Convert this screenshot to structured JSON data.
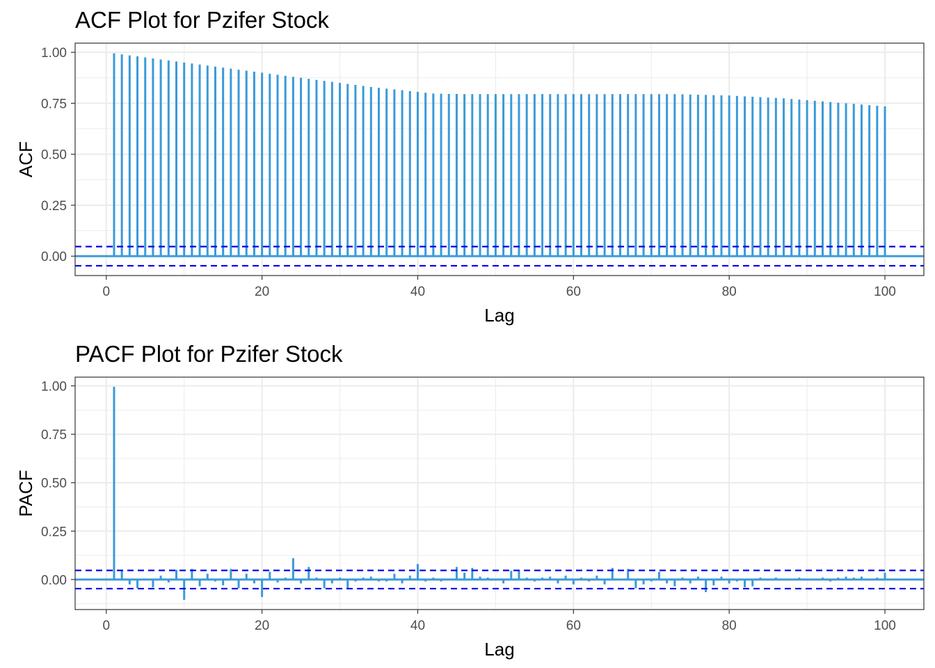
{
  "colors": {
    "bar": "#3a9ad9",
    "confidence": "#0000ee",
    "zero_line": "#3a9ad9"
  },
  "chart_data": [
    {
      "type": "bar",
      "title": "ACF Plot for Pzifer Stock",
      "xlabel": "Lag",
      "ylabel": "ACF",
      "xlim": [
        -4,
        105
      ],
      "ylim": [
        -0.095,
        1.045
      ],
      "x_ticks": [
        0,
        20,
        40,
        60,
        80,
        100
      ],
      "x_tick_labels": [
        "0",
        "20",
        "40",
        "60",
        "80",
        "100"
      ],
      "y_ticks": [
        0,
        0.25,
        0.5,
        0.75,
        1.0
      ],
      "y_tick_labels": [
        "0.00",
        "0.25",
        "0.50",
        "0.75",
        "1.00"
      ],
      "grid": true,
      "confidence_bound": 0.047,
      "lags": [
        1,
        2,
        3,
        4,
        5,
        6,
        7,
        8,
        9,
        10,
        11,
        12,
        13,
        14,
        15,
        16,
        17,
        18,
        19,
        20,
        21,
        22,
        23,
        24,
        25,
        26,
        27,
        28,
        29,
        30,
        31,
        32,
        33,
        34,
        35,
        36,
        37,
        38,
        39,
        40,
        41,
        42,
        43,
        44,
        45,
        46,
        47,
        48,
        49,
        50,
        51,
        52,
        53,
        54,
        55,
        56,
        57,
        58,
        59,
        60,
        61,
        62,
        63,
        64,
        65,
        66,
        67,
        68,
        69,
        70,
        71,
        72,
        73,
        74,
        75,
        76,
        77,
        78,
        79,
        80,
        81,
        82,
        83,
        84,
        85,
        86,
        87,
        88,
        89,
        90,
        91,
        92,
        93,
        94,
        95,
        96,
        97,
        98,
        99,
        100
      ],
      "values": [
        0.995,
        0.99,
        0.985,
        0.98,
        0.975,
        0.97,
        0.965,
        0.96,
        0.955,
        0.95,
        0.945,
        0.94,
        0.935,
        0.93,
        0.925,
        0.92,
        0.915,
        0.91,
        0.905,
        0.9,
        0.895,
        0.89,
        0.885,
        0.88,
        0.875,
        0.87,
        0.865,
        0.86,
        0.855,
        0.85,
        0.845,
        0.84,
        0.835,
        0.83,
        0.826,
        0.822,
        0.818,
        0.814,
        0.81,
        0.806,
        0.802,
        0.798,
        0.797,
        0.796,
        0.796,
        0.795,
        0.795,
        0.795,
        0.795,
        0.795,
        0.795,
        0.795,
        0.795,
        0.795,
        0.795,
        0.795,
        0.795,
        0.795,
        0.795,
        0.795,
        0.795,
        0.795,
        0.795,
        0.795,
        0.795,
        0.795,
        0.795,
        0.795,
        0.795,
        0.795,
        0.795,
        0.795,
        0.795,
        0.794,
        0.793,
        0.792,
        0.791,
        0.79,
        0.789,
        0.788,
        0.786,
        0.784,
        0.782,
        0.78,
        0.778,
        0.776,
        0.774,
        0.771,
        0.768,
        0.765,
        0.762,
        0.759,
        0.756,
        0.753,
        0.75,
        0.747,
        0.744,
        0.741,
        0.738,
        0.735
      ]
    },
    {
      "type": "bar",
      "title": "PACF Plot for Pzifer Stock",
      "xlabel": "Lag",
      "ylabel": "PACF",
      "xlim": [
        -4,
        105
      ],
      "ylim": [
        -0.155,
        1.045
      ],
      "x_ticks": [
        0,
        20,
        40,
        60,
        80,
        100
      ],
      "x_tick_labels": [
        "0",
        "20",
        "40",
        "60",
        "80",
        "100"
      ],
      "y_ticks": [
        0,
        0.25,
        0.5,
        0.75,
        1.0
      ],
      "y_tick_labels": [
        "0.00",
        "0.25",
        "0.50",
        "0.75",
        "1.00"
      ],
      "grid": true,
      "confidence_bound": 0.047,
      "lags": [
        1,
        2,
        3,
        4,
        5,
        6,
        7,
        8,
        9,
        10,
        11,
        12,
        13,
        14,
        15,
        16,
        17,
        18,
        19,
        20,
        21,
        22,
        23,
        24,
        25,
        26,
        27,
        28,
        29,
        30,
        31,
        32,
        33,
        34,
        35,
        36,
        37,
        38,
        39,
        40,
        41,
        42,
        43,
        44,
        45,
        46,
        47,
        48,
        49,
        50,
        51,
        52,
        53,
        54,
        55,
        56,
        57,
        58,
        59,
        60,
        61,
        62,
        63,
        64,
        65,
        66,
        67,
        68,
        69,
        70,
        71,
        72,
        73,
        74,
        75,
        76,
        77,
        78,
        79,
        80,
        81,
        82,
        83,
        84,
        85,
        86,
        87,
        88,
        89,
        90,
        91,
        92,
        93,
        94,
        95,
        96,
        97,
        98,
        99,
        100
      ],
      "values": [
        0.995,
        0.045,
        -0.025,
        -0.045,
        0.005,
        -0.04,
        0.02,
        -0.015,
        0.05,
        -0.105,
        0.055,
        -0.035,
        0.03,
        -0.01,
        -0.03,
        0.055,
        -0.045,
        0.03,
        -0.02,
        -0.09,
        0.04,
        -0.015,
        0.01,
        0.11,
        -0.02,
        0.065,
        0.01,
        -0.045,
        -0.02,
        0.01,
        -0.045,
        -0.01,
        0.01,
        0.015,
        -0.01,
        -0.01,
        0.03,
        -0.02,
        0.02,
        0.08,
        -0.01,
        0.01,
        -0.01,
        0.005,
        0.065,
        0.035,
        0.06,
        0.015,
        0.01,
        0.005,
        -0.02,
        0.045,
        0.045,
        0.01,
        -0.01,
        0.01,
        0.015,
        -0.02,
        0.02,
        -0.025,
        0.01,
        -0.01,
        0.02,
        -0.025,
        0.06,
        0.005,
        0.055,
        -0.045,
        -0.025,
        -0.01,
        0.04,
        -0.02,
        -0.035,
        0.01,
        -0.02,
        0.015,
        -0.065,
        -0.03,
        0.015,
        -0.02,
        -0.01,
        -0.04,
        -0.035,
        0.01,
        -0.005,
        0.01,
        0.005,
        -0.005,
        0.01,
        0.005,
        -0.005,
        0.01,
        -0.01,
        0.01,
        0.015,
        0.01,
        0.015,
        -0.005,
        0.01,
        0.035
      ]
    }
  ]
}
